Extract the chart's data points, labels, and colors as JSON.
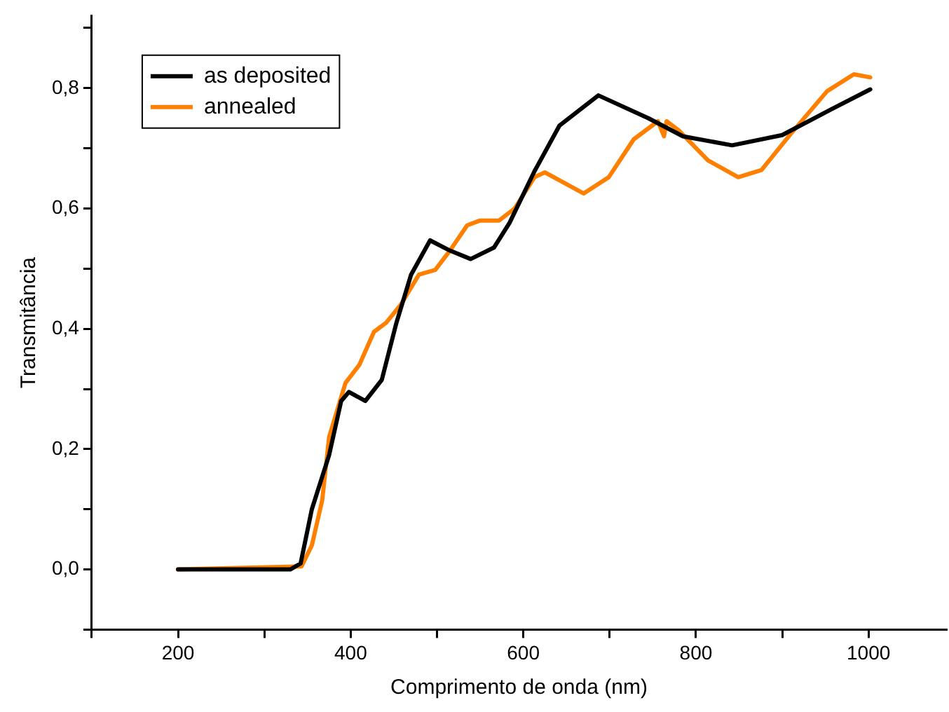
{
  "chart_data": {
    "type": "line",
    "xlabel": "Comprimento de onda (nm)",
    "ylabel": "Transmitância",
    "xlim": [
      100,
      1090
    ],
    "ylim": [
      -0.1,
      0.92
    ],
    "xticks": [
      {
        "value": 100,
        "label": null
      },
      200,
      {
        "value": 300,
        "label": null
      },
      400,
      {
        "value": 500,
        "label": null
      },
      600,
      {
        "value": 700,
        "label": null
      },
      800,
      {
        "value": 900,
        "label": null
      },
      1000
    ],
    "yticks": [
      {
        "value": -0.1,
        "label": null
      },
      {
        "value": 0,
        "label": "0,0"
      },
      {
        "value": 0.1,
        "label": null
      },
      {
        "value": 0.2,
        "label": "0,2"
      },
      {
        "value": 0.3,
        "label": null
      },
      {
        "value": 0.4,
        "label": "0,4"
      },
      {
        "value": 0.5,
        "label": null
      },
      {
        "value": 0.6,
        "label": "0,6"
      },
      {
        "value": 0.7,
        "label": null
      },
      {
        "value": 0.8,
        "label": "0,8"
      },
      {
        "value": 0.9,
        "label": null
      }
    ],
    "grid": false,
    "legend": "top left",
    "marker": "none",
    "line_style": "solid",
    "series": [
      {
        "name": "as deposited",
        "color": "#000000",
        "x": [
          200,
          330,
          342,
          355,
          375,
          389,
          398,
          417,
          436,
          453,
          470,
          492,
          515,
          539,
          566,
          584,
          613,
          642,
          687,
          745,
          785,
          842,
          900,
          957,
          1002
        ],
        "values": [
          0,
          0,
          0.01,
          0.1,
          0.19,
          0.28,
          0.295,
          0.28,
          0.315,
          0.41,
          0.49,
          0.547,
          0.53,
          0.516,
          0.535,
          0.576,
          0.662,
          0.738,
          0.788,
          0.75,
          0.72,
          0.705,
          0.722,
          0.765,
          0.798
        ]
      },
      {
        "name": "annealed",
        "color": "#ff8000",
        "x": [
          200,
          343,
          355,
          367,
          375,
          394,
          410,
          427,
          441,
          458,
          479,
          498,
          515,
          535,
          550,
          572,
          590,
          613,
          625,
          670,
          699,
          728,
          756,
          763,
          766,
          780,
          814,
          849,
          876,
          911,
          952,
          983,
          1002
        ],
        "values": [
          0,
          0.005,
          0.04,
          0.115,
          0.22,
          0.31,
          0.34,
          0.395,
          0.41,
          0.44,
          0.49,
          0.498,
          0.53,
          0.572,
          0.58,
          0.58,
          0.6,
          0.652,
          0.66,
          0.625,
          0.652,
          0.715,
          0.745,
          0.72,
          0.745,
          0.73,
          0.68,
          0.652,
          0.664,
          0.726,
          0.795,
          0.823,
          0.818
        ]
      }
    ]
  }
}
